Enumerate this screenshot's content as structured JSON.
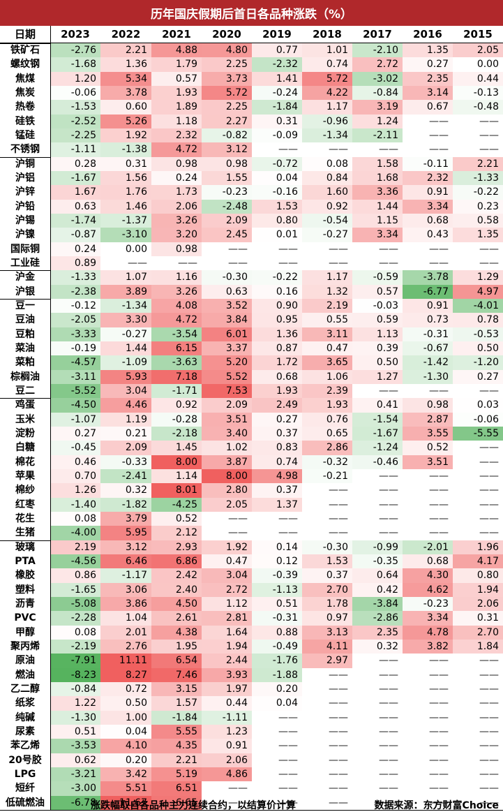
{
  "title": "历年国庆假期后首日各品种涨跌（%）",
  "footer": {
    "note": "涨跌幅取自各品种主力连续合约，以结算价计算",
    "source": "数据来源：东方财富Choice"
  },
  "colors": {
    "title_bg": "#b0282b",
    "positive": "#f0605f",
    "negative": "#56b35e"
  },
  "chart_data": {
    "type": "table",
    "row_header": "日期",
    "columns": [
      "2023",
      "2022",
      "2021",
      "2020",
      "2019",
      "2018",
      "2017",
      "2016",
      "2015"
    ],
    "missing_marker": "——",
    "groups": [
      {
        "rows": [
          {
            "name": "铁矿石",
            "values": [
              -2.76,
              2.21,
              4.88,
              4.8,
              0.77,
              1.01,
              -2.1,
              1.35,
              2.05
            ]
          },
          {
            "name": "螺纹钢",
            "values": [
              -1.68,
              1.36,
              1.79,
              2.25,
              -2.32,
              0.74,
              2.72,
              0.27,
              0.0
            ]
          },
          {
            "name": "焦煤",
            "values": [
              1.2,
              5.34,
              0.57,
              3.73,
              1.41,
              5.72,
              -3.02,
              2.35,
              0.44
            ]
          },
          {
            "name": "焦炭",
            "values": [
              -0.06,
              3.78,
              1.93,
              5.72,
              -0.24,
              4.22,
              -0.84,
              3.14,
              -0.13
            ]
          },
          {
            "name": "热卷",
            "values": [
              -1.53,
              0.6,
              1.89,
              2.25,
              -1.84,
              1.17,
              3.19,
              0.67,
              -0.48
            ]
          },
          {
            "name": "硅铁",
            "values": [
              -2.52,
              5.26,
              1.18,
              2.27,
              0.31,
              -0.96,
              1.24,
              null,
              null
            ]
          },
          {
            "name": "锰硅",
            "values": [
              -2.25,
              1.92,
              2.32,
              -0.82,
              -0.09,
              -1.34,
              -2.11,
              null,
              null
            ]
          },
          {
            "name": "不锈钢",
            "values": [
              -1.11,
              -1.38,
              4.72,
              3.12,
              null,
              null,
              null,
              null,
              null
            ]
          }
        ]
      },
      {
        "rows": [
          {
            "name": "沪铜",
            "values": [
              0.28,
              0.31,
              0.98,
              0.98,
              -0.72,
              0.08,
              1.58,
              -0.11,
              2.21
            ]
          },
          {
            "name": "沪铝",
            "values": [
              -1.67,
              1.56,
              0.24,
              1.55,
              0.04,
              0.84,
              1.68,
              2.32,
              -1.33
            ]
          },
          {
            "name": "沪锌",
            "values": [
              1.67,
              1.76,
              1.73,
              -0.23,
              -0.16,
              1.6,
              3.36,
              0.91,
              -0.22
            ]
          },
          {
            "name": "沪铅",
            "values": [
              0.63,
              1.46,
              2.06,
              -2.48,
              1.53,
              0.92,
              1.44,
              3.34,
              0.23
            ]
          },
          {
            "name": "沪锡",
            "values": [
              -1.74,
              -1.37,
              3.26,
              2.09,
              0.8,
              -0.54,
              1.15,
              0.68,
              0.58
            ]
          },
          {
            "name": "沪镍",
            "values": [
              -0.87,
              -3.1,
              3.2,
              2.45,
              0.01,
              -0.27,
              3.34,
              0.43,
              1.35
            ]
          },
          {
            "name": "国际铜",
            "values": [
              0.24,
              0.0,
              0.98,
              null,
              null,
              null,
              null,
              null,
              null
            ]
          },
          {
            "name": "工业硅",
            "values": [
              0.89,
              null,
              null,
              null,
              null,
              null,
              null,
              null,
              null
            ]
          }
        ]
      },
      {
        "rows": [
          {
            "name": "沪金",
            "values": [
              -1.33,
              1.07,
              1.16,
              -0.3,
              -0.22,
              1.17,
              -0.59,
              -3.78,
              1.29
            ]
          },
          {
            "name": "沪银",
            "values": [
              -2.38,
              3.89,
              3.26,
              0.63,
              0.16,
              1.32,
              0.57,
              -6.77,
              4.97
            ]
          }
        ]
      },
      {
        "rows": [
          {
            "name": "豆一",
            "values": [
              -0.12,
              -1.34,
              4.08,
              3.52,
              0.9,
              2.19,
              -0.03,
              0.91,
              -4.01
            ]
          },
          {
            "name": "豆油",
            "values": [
              -2.05,
              3.3,
              4.72,
              3.84,
              0.95,
              0.55,
              0.59,
              0.73,
              0.78
            ]
          },
          {
            "name": "豆粕",
            "values": [
              -3.33,
              -0.27,
              -3.54,
              6.01,
              1.36,
              3.11,
              1.13,
              -0.31,
              -0.53
            ]
          },
          {
            "name": "菜油",
            "values": [
              -0.19,
              1.44,
              6.15,
              3.37,
              0.87,
              0.47,
              0.39,
              -0.67,
              0.5
            ]
          },
          {
            "name": "菜粕",
            "values": [
              -4.57,
              -1.09,
              -3.63,
              5.2,
              1.72,
              3.65,
              0.5,
              -1.42,
              -1.2
            ]
          },
          {
            "name": "棕榈油",
            "values": [
              -3.11,
              5.93,
              7.18,
              5.52,
              0.68,
              1.06,
              1.27,
              -1.3,
              0.27
            ]
          },
          {
            "name": "豆二",
            "values": [
              -5.52,
              3.04,
              -1.71,
              7.53,
              1.93,
              2.39,
              null,
              null,
              null
            ]
          }
        ]
      },
      {
        "rows": [
          {
            "name": "鸡蛋",
            "values": [
              -4.5,
              4.46,
              0.92,
              2.09,
              2.49,
              1.93,
              0.41,
              0.98,
              0.03
            ]
          },
          {
            "name": "玉米",
            "values": [
              -1.07,
              1.19,
              -0.28,
              3.51,
              0.27,
              0.76,
              -1.54,
              2.87,
              -0.06
            ]
          },
          {
            "name": "淀粉",
            "values": [
              0.27,
              0.21,
              -2.18,
              3.4,
              0.37,
              0.65,
              -1.67,
              3.55,
              -5.55
            ]
          },
          {
            "name": "白糖",
            "values": [
              -0.45,
              2.09,
              1.45,
              1.02,
              0.83,
              2.86,
              -1.24,
              0.52,
              null
            ]
          },
          {
            "name": "棉花",
            "values": [
              0.46,
              -0.33,
              8.0,
              3.87,
              0.74,
              -0.32,
              -0.46,
              3.51,
              null
            ]
          },
          {
            "name": "苹果",
            "values": [
              0.7,
              -2.41,
              1.14,
              8.0,
              4.98,
              -0.21,
              null,
              null,
              null
            ]
          },
          {
            "name": "棉纱",
            "values": [
              1.26,
              0.32,
              8.01,
              2.8,
              0.37,
              null,
              null,
              null,
              null
            ]
          },
          {
            "name": "红枣",
            "values": [
              -1.4,
              -1.82,
              -4.25,
              2.05,
              1.37,
              null,
              null,
              null,
              null
            ]
          },
          {
            "name": "花生",
            "values": [
              0.08,
              3.79,
              0.52,
              null,
              null,
              null,
              null,
              null,
              null
            ]
          },
          {
            "name": "生猪",
            "values": [
              -4.0,
              5.95,
              2.12,
              null,
              null,
              null,
              null,
              null,
              null
            ]
          }
        ]
      },
      {
        "rows": [
          {
            "name": "玻璃",
            "values": [
              2.19,
              3.12,
              2.93,
              1.92,
              0.14,
              -0.3,
              -0.99,
              -2.01,
              1.96
            ]
          },
          {
            "name": "PTA",
            "values": [
              -4.56,
              6.46,
              6.86,
              0.47,
              0.12,
              1.53,
              -0.35,
              0.68,
              4.17
            ]
          },
          {
            "name": "橡胶",
            "values": [
              0.86,
              -1.17,
              2.42,
              3.04,
              -0.39,
              0.37,
              0.64,
              4.3,
              0.8
            ]
          },
          {
            "name": "塑料",
            "values": [
              -1.65,
              3.06,
              2.4,
              2.72,
              -1.13,
              2.7,
              0.42,
              4.62,
              1.94
            ]
          },
          {
            "name": "沥青",
            "values": [
              -5.08,
              3.86,
              4.5,
              1.12,
              0.51,
              1.78,
              -3.84,
              -0.23,
              2.06
            ]
          },
          {
            "name": "PVC",
            "values": [
              -2.28,
              1.04,
              2.61,
              2.81,
              -0.31,
              0.97,
              -2.86,
              3.34,
              0.31
            ]
          },
          {
            "name": "甲醇",
            "values": [
              0.08,
              2.01,
              4.38,
              1.64,
              0.88,
              3.13,
              2.35,
              4.78,
              2.7
            ]
          },
          {
            "name": "聚丙烯",
            "values": [
              -2.19,
              2.76,
              1.95,
              1.94,
              -0.49,
              4.11,
              0.32,
              3.82,
              1.84
            ]
          },
          {
            "name": "原油",
            "values": [
              -7.91,
              11.11,
              6.54,
              2.44,
              -1.76,
              2.97,
              null,
              null,
              null
            ]
          },
          {
            "name": "燃油",
            "values": [
              -8.23,
              8.27,
              7.46,
              3.93,
              -1.88,
              null,
              null,
              null,
              null
            ]
          },
          {
            "name": "乙二醇",
            "values": [
              -0.84,
              0.72,
              3.15,
              1.97,
              0.2,
              null,
              null,
              null,
              null
            ]
          },
          {
            "name": "纸浆",
            "values": [
              1.22,
              0.5,
              1.57,
              0.44,
              0.04,
              null,
              null,
              null,
              null
            ]
          },
          {
            "name": "纯碱",
            "values": [
              -1.3,
              1.0,
              -1.84,
              -1.11,
              null,
              null,
              null,
              null,
              null
            ]
          },
          {
            "name": "尿素",
            "values": [
              0.51,
              0.04,
              5.55,
              1.23,
              null,
              null,
              null,
              null,
              null
            ]
          },
          {
            "name": "苯乙烯",
            "values": [
              -3.53,
              4.1,
              4.35,
              0.91,
              null,
              null,
              null,
              null,
              null
            ]
          },
          {
            "name": "20号胶",
            "values": [
              0.62,
              0.2,
              2.21,
              2.06,
              null,
              null,
              null,
              null,
              null
            ]
          },
          {
            "name": "LPG",
            "values": [
              -3.21,
              3.42,
              5.19,
              4.86,
              null,
              null,
              null,
              null,
              null
            ]
          },
          {
            "name": "短纤",
            "values": [
              -3.0,
              5.51,
              6.51,
              null,
              null,
              null,
              null,
              null,
              null
            ]
          },
          {
            "name": "低硫燃油",
            "values": [
              -6.78,
              11.67,
              6.65,
              null,
              null,
              null,
              null,
              null,
              null
            ]
          }
        ]
      }
    ]
  }
}
